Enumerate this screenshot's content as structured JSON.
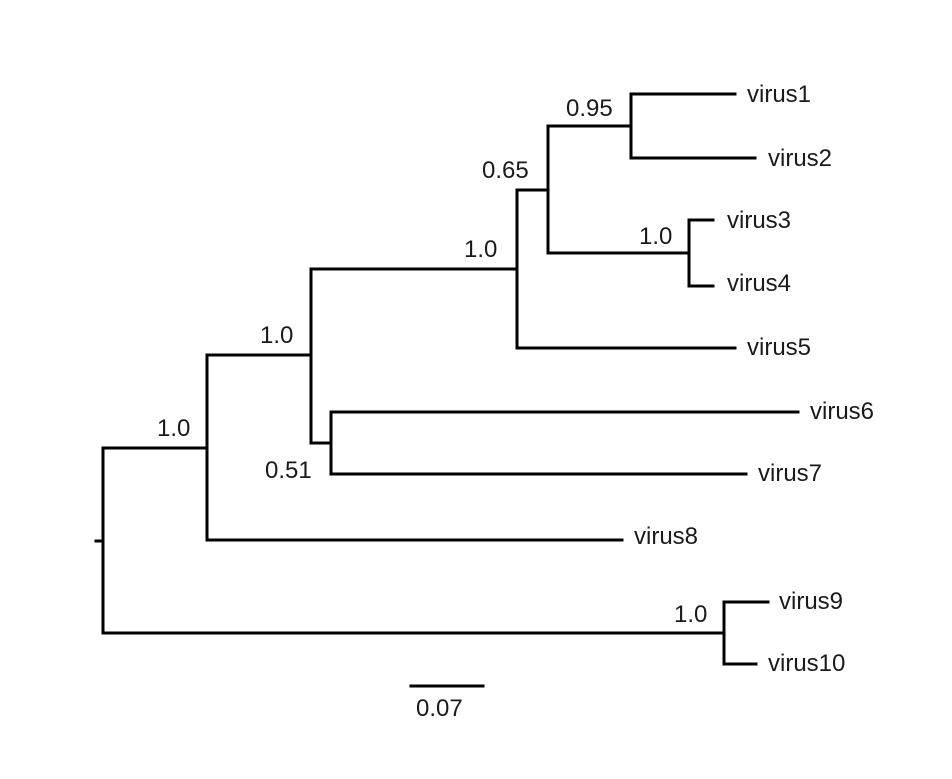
{
  "tree": {
    "tips": {
      "virus1": "virus1",
      "virus2": "virus2",
      "virus3": "virus3",
      "virus4": "virus4",
      "virus5": "virus5",
      "virus6": "virus6",
      "virus7": "virus7",
      "virus8": "virus8",
      "virus9": "virus9",
      "virus10": "virus10"
    },
    "support": {
      "v1_v2": "0.95",
      "v1_v4": "0.65",
      "v3_v4": "1.0",
      "v1_v5": "1.0",
      "v1_v7": "1.0",
      "v6_v7": "0.51",
      "v1_v8": "1.0",
      "v9_v10": "1.0"
    },
    "scale_bar": {
      "label": "0.07",
      "value": 0.07
    }
  },
  "colors": {
    "branch": "#000000",
    "text": "#1a1a1a"
  }
}
